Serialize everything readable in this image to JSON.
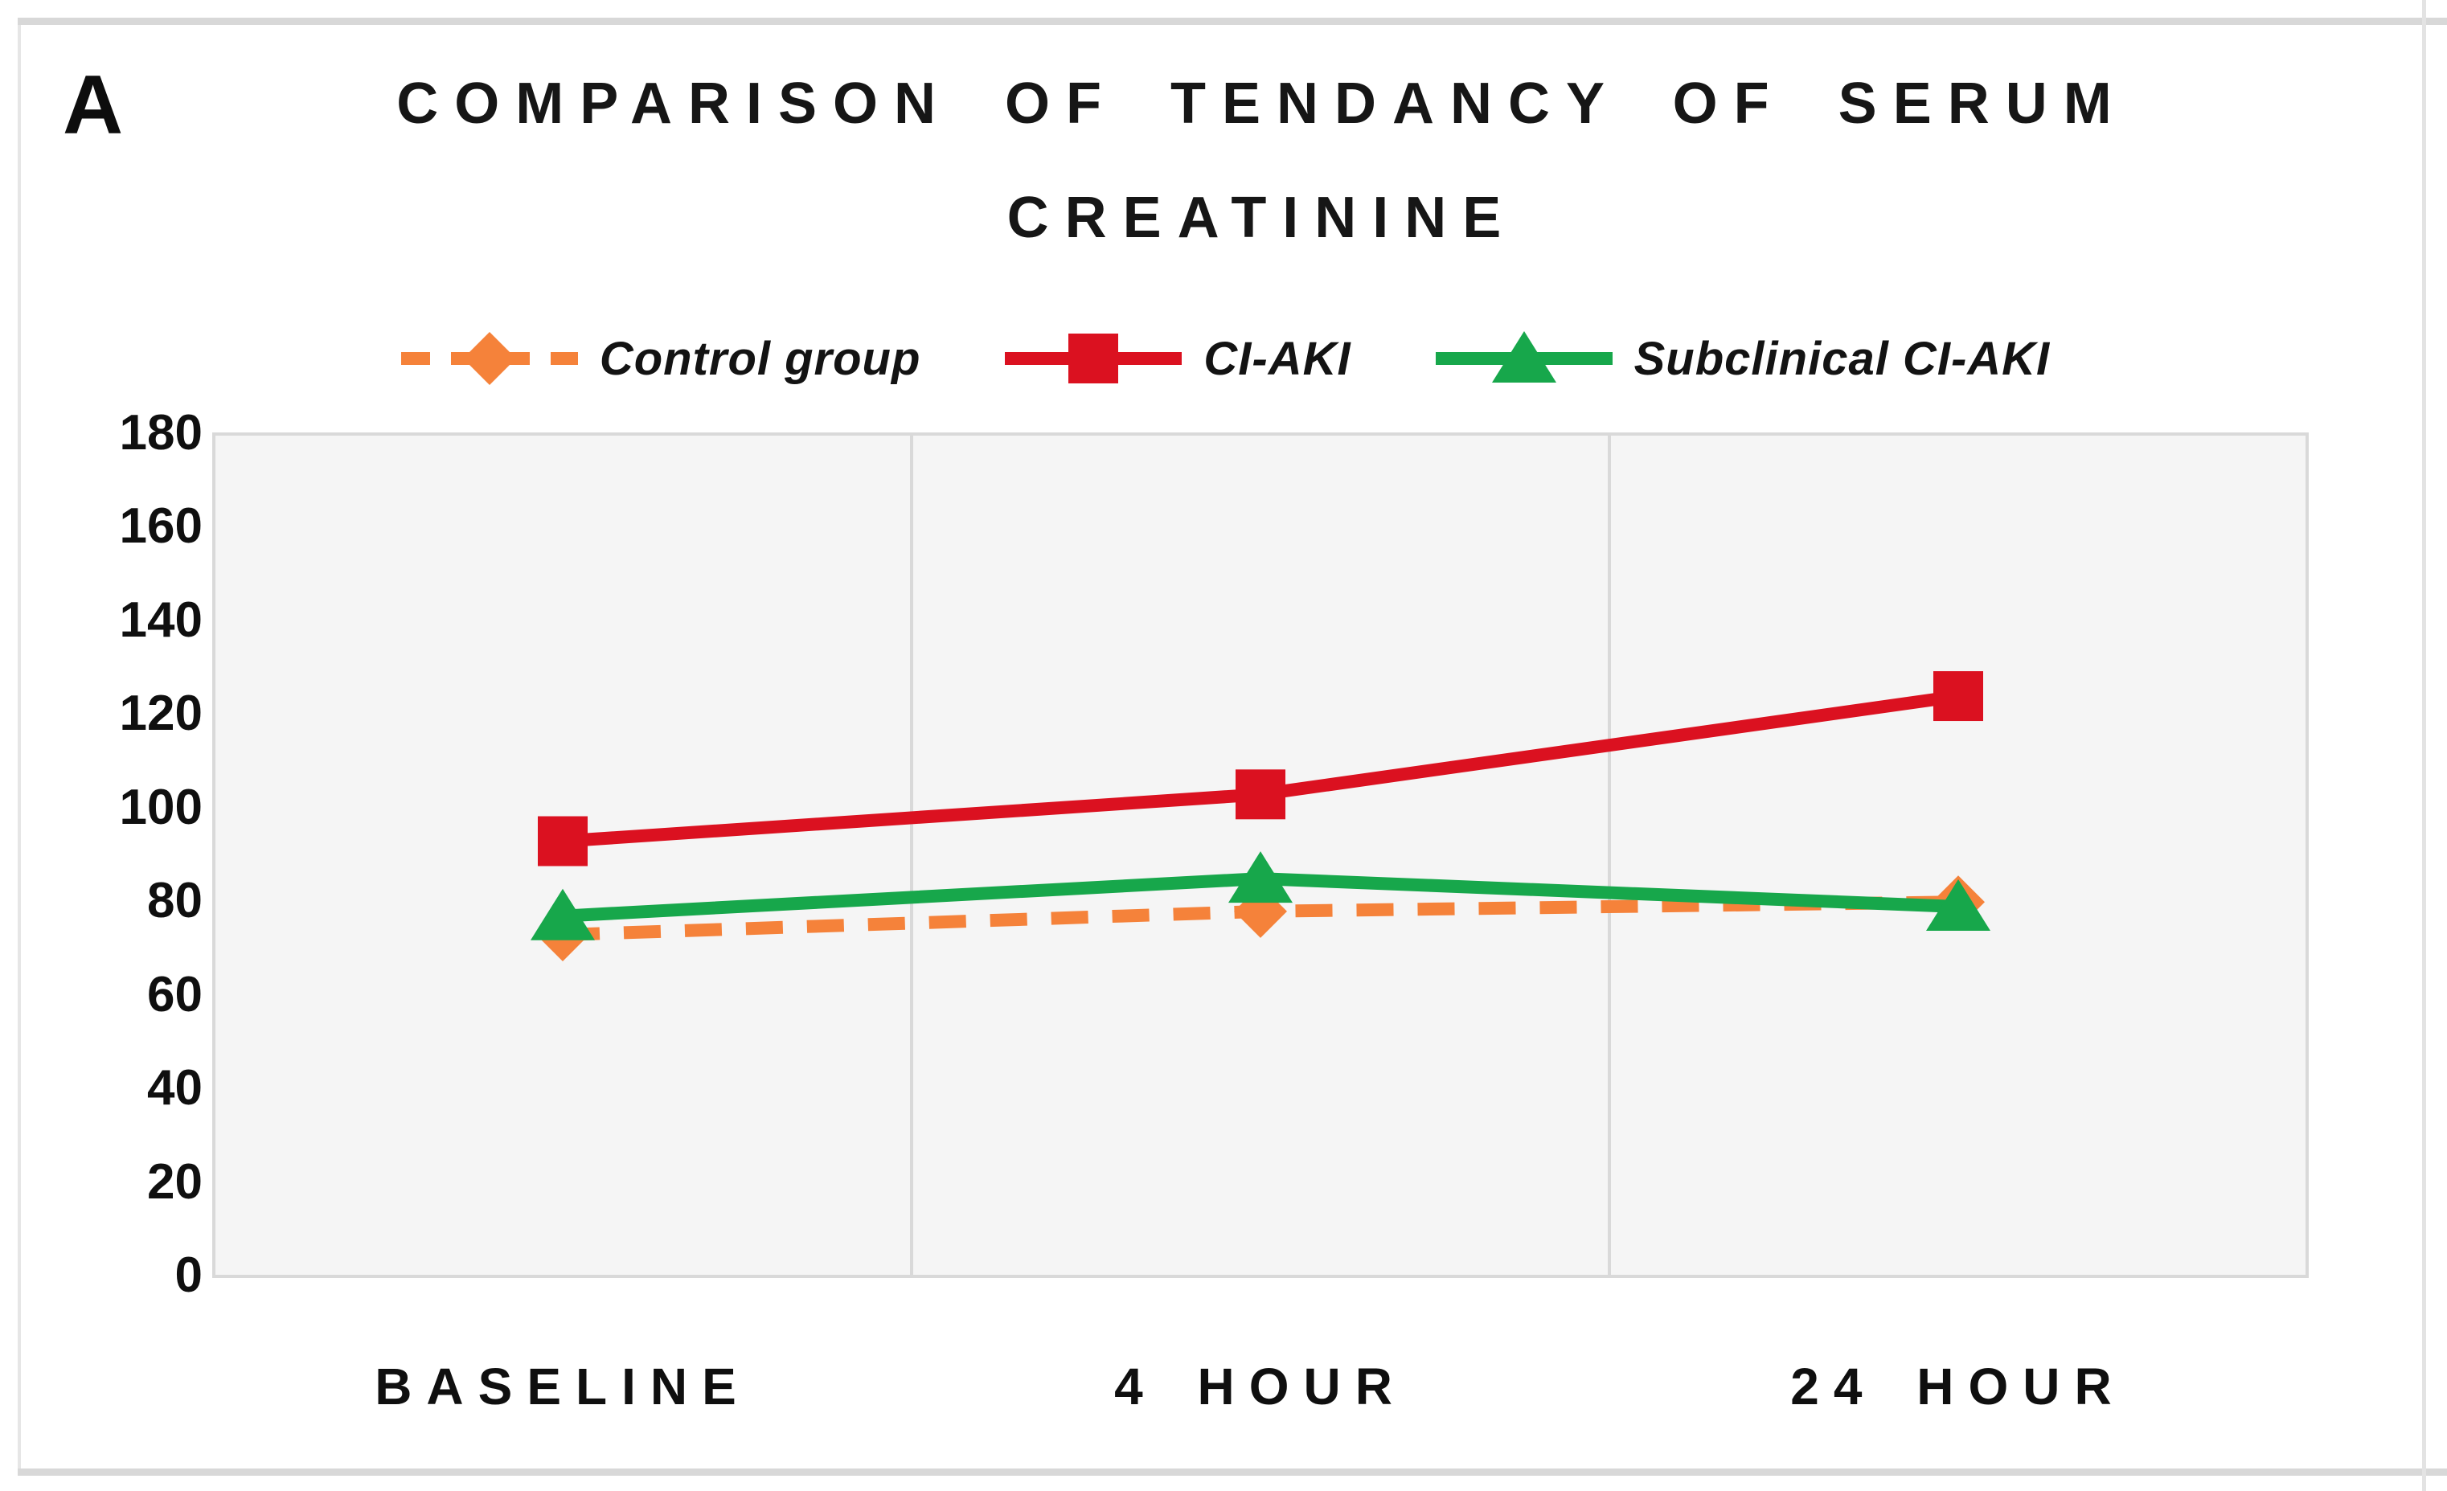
{
  "panel_label": "A",
  "title": {
    "line1": "COMPARISON OF TENDANCY OF SERUM",
    "line2": "CREATININE"
  },
  "chart_data": {
    "type": "line",
    "title": "COMPARISON OF TENDANCY OF SERUM CREATININE",
    "categories": [
      "BASELINE",
      "4 HOUR",
      "24 HOUR"
    ],
    "series": [
      {
        "name": "Control group",
        "values": [
          73,
          78,
          80
        ],
        "color": "#F5823A",
        "line_style": "dashed",
        "marker": "diamond"
      },
      {
        "name": "CI-AKI",
        "values": [
          93,
          103,
          124
        ],
        "color": "#DB1120",
        "line_style": "solid",
        "marker": "square"
      },
      {
        "name": "Subclinical CI-AKI",
        "values": [
          77,
          85,
          79
        ],
        "color": "#17A74B",
        "line_style": "solid",
        "marker": "triangle"
      }
    ],
    "ylim": [
      0,
      180
    ],
    "yticks": [
      180,
      160,
      140,
      120,
      100,
      80,
      60,
      40,
      20,
      0
    ],
    "xlabel": "",
    "ylabel": "",
    "grid": "vertical-category-boundaries",
    "legend_position": "top-center",
    "plot_background": "#f5f5f5",
    "grid_color": "#d9d9d9",
    "axis_text_color": "#0f0f0f"
  }
}
